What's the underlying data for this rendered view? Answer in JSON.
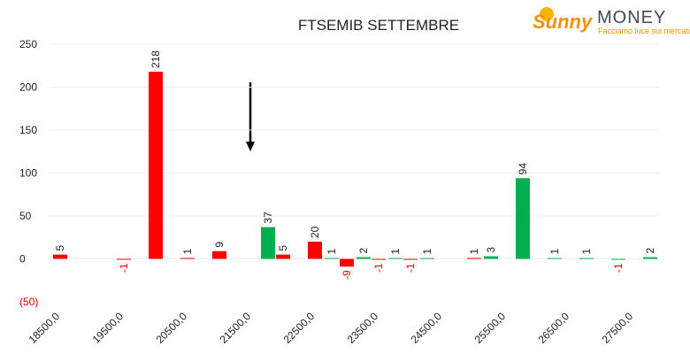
{
  "chart_data": {
    "type": "bar",
    "title": "FTSEMIB SETTEMBRE",
    "categories": [
      "18500,0",
      null,
      "19500,0",
      null,
      "20500,0",
      null,
      "21500,0",
      null,
      "22500,0",
      null,
      "23500,0",
      null,
      "24500,0",
      null,
      "25500,0",
      null,
      "26500,0",
      null,
      "27500,0",
      null
    ],
    "series": [
      {
        "color": "#ff0000",
        "values": [
          5,
          null,
          -1,
          218,
          1,
          9,
          null,
          5,
          20,
          -9,
          -1,
          -1,
          null,
          1,
          null,
          null,
          null,
          null,
          null,
          null
        ]
      },
      {
        "color": "#00b050",
        "values": [
          null,
          null,
          null,
          null,
          null,
          null,
          null,
          37,
          null,
          1,
          2,
          1,
          1,
          null,
          3,
          94,
          1,
          1,
          -1,
          2
        ]
      }
    ],
    "ylim": [
      -50,
      250
    ],
    "yticks": [
      {
        "value": -50,
        "label": "(50)"
      },
      0,
      50,
      100,
      150,
      200,
      250
    ],
    "grid": true,
    "negative_color": "#ff0000"
  },
  "logo": {
    "brand": "Sunny",
    "name": "MONEY",
    "tagline": "Facciamo luce sui mercati"
  }
}
